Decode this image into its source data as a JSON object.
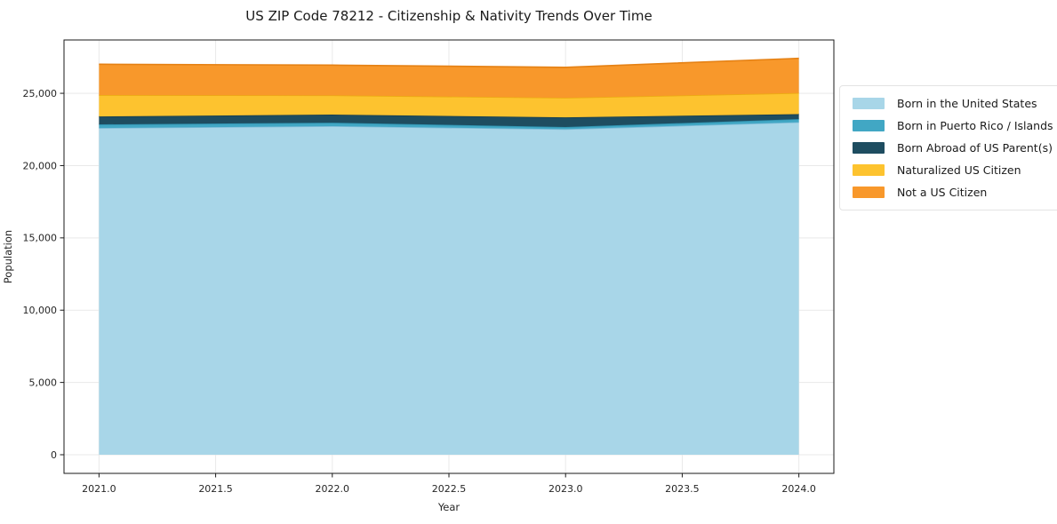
{
  "chart_data": {
    "type": "area",
    "stacked": true,
    "title": "US ZIP Code 78212 - Citizenship & Nativity Trends Over Time",
    "xlabel": "Year",
    "ylabel": "Population",
    "x": [
      2021,
      2022,
      2023,
      2024
    ],
    "x_tick_values": [
      2021.0,
      2021.5,
      2022.0,
      2022.5,
      2023.0,
      2023.5,
      2024.0
    ],
    "x_tick_labels": [
      "2021.0",
      "2021.5",
      "2022.0",
      "2022.5",
      "2023.0",
      "2023.5",
      "2024.0"
    ],
    "y_tick_values": [
      0,
      5000,
      10000,
      15000,
      20000,
      25000
    ],
    "y_tick_labels": [
      "0",
      "5,000",
      "10,000",
      "15,000",
      "20,000",
      "25,000"
    ],
    "xlim": [
      2020.85,
      2024.15
    ],
    "ylim": [
      -1290,
      28690
    ],
    "grid": true,
    "grid_color": "#e9e9e9",
    "spine_color": "#1a1a1a",
    "legend_position": "right-outside",
    "series": [
      {
        "name": "Born in the United States",
        "color": "#a8d6e8",
        "line_color": "#7fbdd9",
        "values": [
          22600,
          22730,
          22520,
          23000
        ]
      },
      {
        "name": "Born in Puerto Rico / Islands",
        "color": "#41a7c4",
        "line_color": "#2e8fac",
        "values": [
          250,
          240,
          150,
          220
        ]
      },
      {
        "name": "Born Abroad of US Parent(s)",
        "color": "#1e4d60",
        "line_color": "#163c4c",
        "values": [
          550,
          560,
          670,
          340
        ]
      },
      {
        "name": "Naturalized US Citizen",
        "color": "#fdc32f",
        "line_color": "#ecab12",
        "values": [
          1480,
          1330,
          1350,
          1460
        ]
      },
      {
        "name": "Not a US Citizen",
        "color": "#f8982b",
        "line_color": "#e58114",
        "values": [
          2130,
          2090,
          2110,
          2400
        ]
      }
    ]
  }
}
